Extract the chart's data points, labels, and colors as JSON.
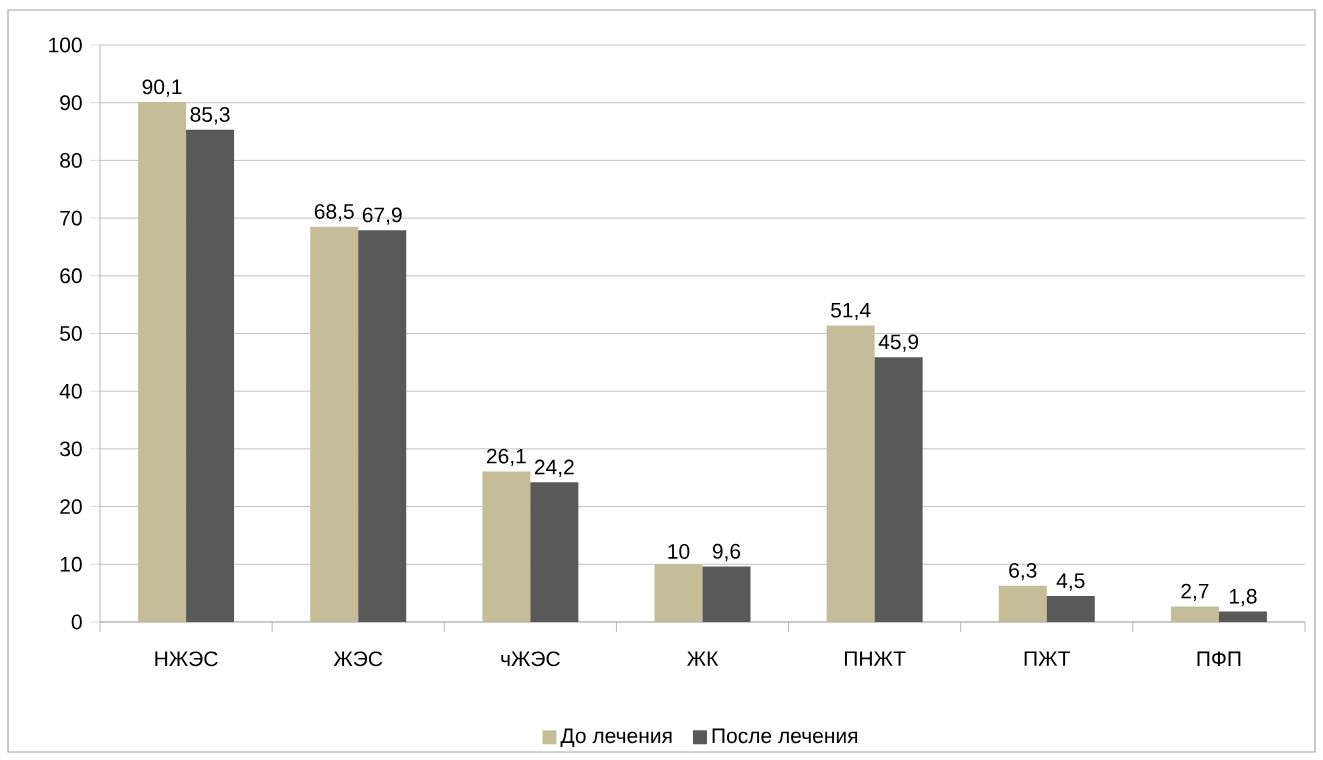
{
  "chart_data": {
    "type": "bar",
    "categories": [
      "НЖЭС",
      "ЖЭС",
      "чЖЭС",
      "ЖК",
      "ПНЖТ",
      "ПЖТ",
      "ПФП"
    ],
    "series": [
      {
        "name": "До лечения",
        "color": "#c4bd97",
        "values": [
          90.1,
          68.5,
          26.1,
          10,
          51.4,
          6.3,
          2.7
        ],
        "value_labels": [
          "90,1",
          "68,5",
          "26,1",
          "10",
          "51,4",
          "6,3",
          "2,7"
        ]
      },
      {
        "name": "После лечения",
        "color": "#595959",
        "values": [
          85.3,
          67.9,
          24.2,
          9.6,
          45.9,
          4.5,
          1.8
        ],
        "value_labels": [
          "85,3",
          "67,9",
          "24,2",
          "9,6",
          "45,9",
          "4,5",
          "1,8"
        ]
      }
    ],
    "ylim": [
      0,
      100
    ],
    "yticks": [
      0,
      10,
      20,
      30,
      40,
      50,
      60,
      70,
      80,
      90,
      100
    ],
    "grid": "y",
    "legend": "bottom"
  }
}
